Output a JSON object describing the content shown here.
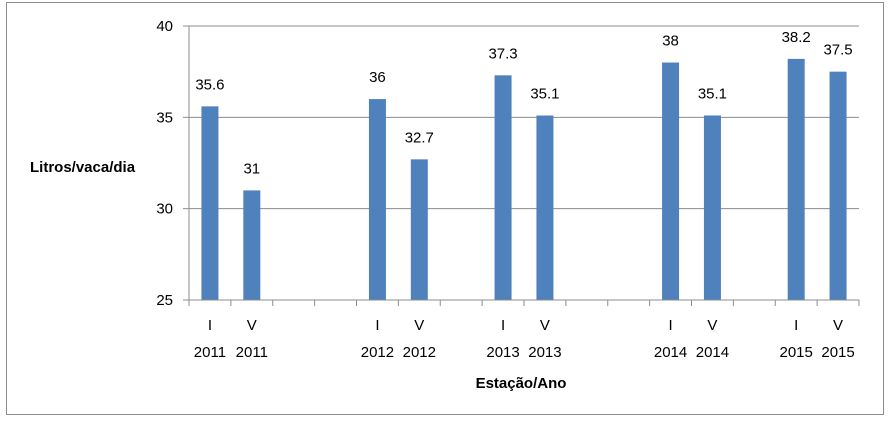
{
  "chart_data": {
    "type": "bar",
    "title": "",
    "xlabel": "Estação/Ano",
    "ylabel": "Litros/vaca/dia",
    "ylim": [
      25,
      40
    ],
    "yticks": [
      25,
      30,
      35,
      40
    ],
    "grid": true,
    "legend": "none",
    "colors": {
      "bar": "#4f81bd",
      "grid": "#8c8c8c",
      "axis": "#8c8c8c"
    },
    "categories": [
      {
        "season": "I",
        "year": "2011",
        "value": 35.6
      },
      {
        "season": "V",
        "year": "2011",
        "value": 31
      },
      {
        "season": "",
        "year": "",
        "value": null
      },
      {
        "season": "",
        "year": "",
        "value": null
      },
      {
        "season": "I",
        "year": "2012",
        "value": 36
      },
      {
        "season": "V",
        "year": "2012",
        "value": 32.7
      },
      {
        "season": "",
        "year": "",
        "value": null
      },
      {
        "season": "I",
        "year": "2013",
        "value": 37.3
      },
      {
        "season": "V",
        "year": "2013",
        "value": 35.1
      },
      {
        "season": "",
        "year": "",
        "value": null
      },
      {
        "season": "",
        "year": "",
        "value": null
      },
      {
        "season": "I",
        "year": "2014",
        "value": 38
      },
      {
        "season": "V",
        "year": "2014",
        "value": 35.1
      },
      {
        "season": "",
        "year": "",
        "value": null
      },
      {
        "season": "I",
        "year": "2015",
        "value": 38.2
      },
      {
        "season": "V",
        "year": "2015",
        "value": 37.5
      }
    ]
  }
}
